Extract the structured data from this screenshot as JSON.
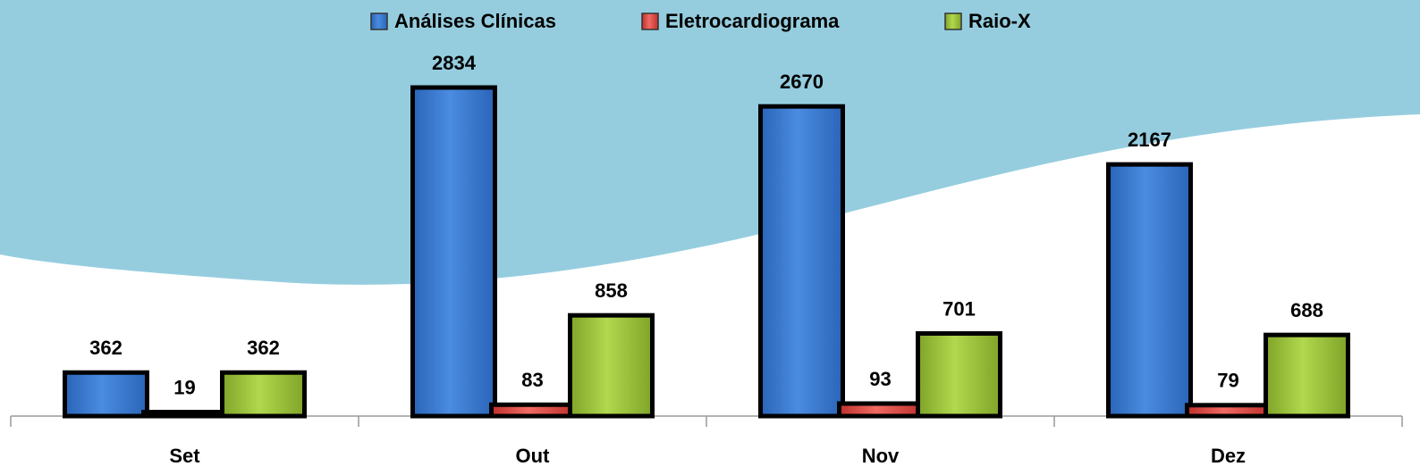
{
  "chart_data": {
    "type": "bar",
    "categories": [
      "Set",
      "Out",
      "Nov",
      "Dez"
    ],
    "series": [
      {
        "name": "Análises Clínicas",
        "color": "#3d7fd9",
        "values": [
          362,
          2834,
          2670,
          2167
        ]
      },
      {
        "name": "Eletrocardiograma",
        "color": "#e0504a",
        "values": [
          19,
          83,
          93,
          79
        ]
      },
      {
        "name": "Raio-X",
        "color": "#9bc43c",
        "values": [
          362,
          858,
          701,
          688
        ]
      }
    ],
    "legend": "top"
  }
}
